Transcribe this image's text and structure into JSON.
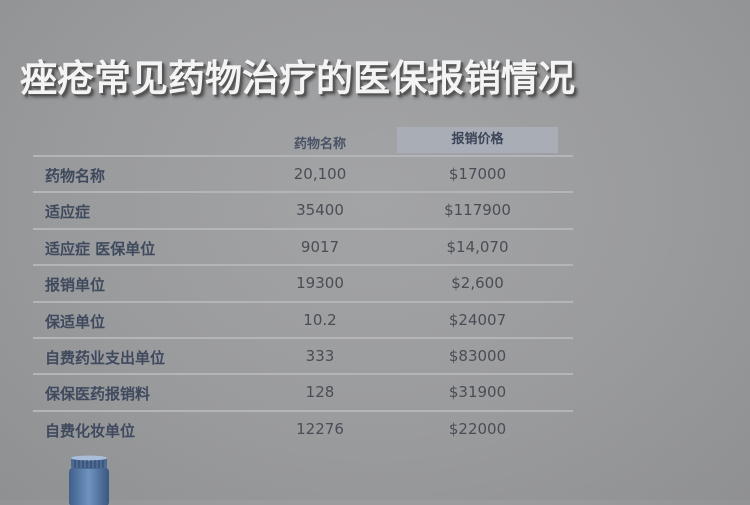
{
  "title": "痤疮常见药物治疗的医保报销情况",
  "table": {
    "headers": [
      "",
      "药物名称",
      "报销价格"
    ],
    "rows": [
      [
        "药物名称",
        "20,100",
        "$17000"
      ],
      [
        "适应症",
        "35400",
        "$117900"
      ],
      [
        "适应症 医保单位",
        "9017",
        "$14,070"
      ],
      [
        "报销单位",
        "19300",
        "$2,600"
      ],
      [
        "保适单位",
        "10.2",
        "$24007"
      ],
      [
        "自费药业支出单位",
        "333",
        "$83000"
      ],
      [
        "保保医药报销料",
        "128",
        "$31900"
      ],
      [
        "自费化妆单位",
        "12276",
        "$22000"
      ]
    ]
  },
  "icons": {
    "bottle": "pill-bottle-icon"
  },
  "colors": {
    "background": "#9a9b9d",
    "title": "#f4f4f4",
    "label": "#3f4a5e",
    "header_highlight": "#a9adb6"
  }
}
